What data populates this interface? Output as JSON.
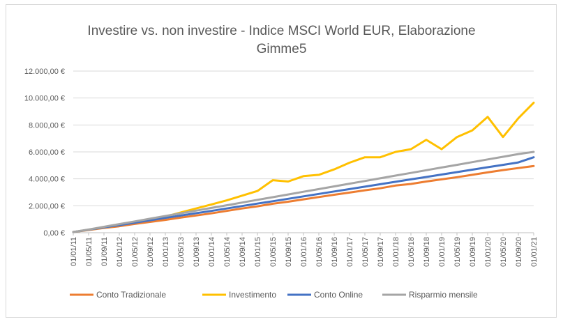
{
  "chart_data": {
    "type": "line",
    "title_line1": "Investire vs. non investire - Indice MSCI World EUR, Elaborazione",
    "title_line2": "Gimme5",
    "xlabel": "",
    "ylabel": "",
    "ylim": [
      0,
      12000
    ],
    "yticks": [
      "0,00 €",
      "2.000,00 €",
      "4.000,00 €",
      "6.000,00 €",
      "8.000,00 €",
      "10.000,00 €",
      "12.000,00 €"
    ],
    "ytick_values": [
      0,
      2000,
      4000,
      6000,
      8000,
      10000,
      12000
    ],
    "grid": true,
    "legend_position": "bottom",
    "x": [
      "01/01/11",
      "01/05/11",
      "01/09/11",
      "01/01/12",
      "01/05/12",
      "01/09/12",
      "01/01/13",
      "01/05/13",
      "01/09/13",
      "01/01/14",
      "01/05/14",
      "01/09/14",
      "01/01/15",
      "01/05/15",
      "01/09/15",
      "01/01/16",
      "01/05/16",
      "01/09/16",
      "01/01/17",
      "01/05/17",
      "01/09/17",
      "01/01/18",
      "01/05/18",
      "01/09/18",
      "01/01/19",
      "01/05/19",
      "01/09/19",
      "01/01/20",
      "01/05/20",
      "01/09/20",
      "01/01/21"
    ],
    "series": [
      {
        "name": "Conto Tradizionale",
        "color": "#ED7D31",
        "values": [
          50,
          200,
          350,
          480,
          650,
          800,
          950,
          1120,
          1280,
          1440,
          1620,
          1800,
          1960,
          2150,
          2300,
          2480,
          2650,
          2820,
          2980,
          3150,
          3300,
          3500,
          3620,
          3800,
          3960,
          4120,
          4300,
          4480,
          4650,
          4800,
          4950
        ]
      },
      {
        "name": "Investimento",
        "color": "#FFC000",
        "values": [
          50,
          220,
          400,
          560,
          780,
          1000,
          1200,
          1500,
          1800,
          2100,
          2400,
          2750,
          3100,
          3900,
          3800,
          4200,
          4300,
          4700,
          5200,
          5600,
          5600,
          6000,
          6200,
          6900,
          6200,
          7100,
          7600,
          8600,
          7100,
          8500,
          9650
        ]
      },
      {
        "name": "Conto Online",
        "color": "#4472C4",
        "values": [
          50,
          220,
          400,
          560,
          740,
          920,
          1100,
          1270,
          1450,
          1620,
          1800,
          1980,
          2160,
          2340,
          2520,
          2700,
          2880,
          3060,
          3240,
          3420,
          3600,
          3780,
          3960,
          4140,
          4320,
          4500,
          4680,
          4860,
          5040,
          5220,
          5600
        ]
      },
      {
        "name": "Risparmio mensile",
        "color": "#A5A5A5",
        "values": [
          50,
          240,
          440,
          640,
          840,
          1040,
          1240,
          1440,
          1640,
          1840,
          2040,
          2240,
          2440,
          2640,
          2840,
          3040,
          3240,
          3440,
          3640,
          3840,
          4040,
          4240,
          4440,
          4640,
          4840,
          5040,
          5240,
          5440,
          5640,
          5840,
          6000
        ]
      }
    ]
  }
}
